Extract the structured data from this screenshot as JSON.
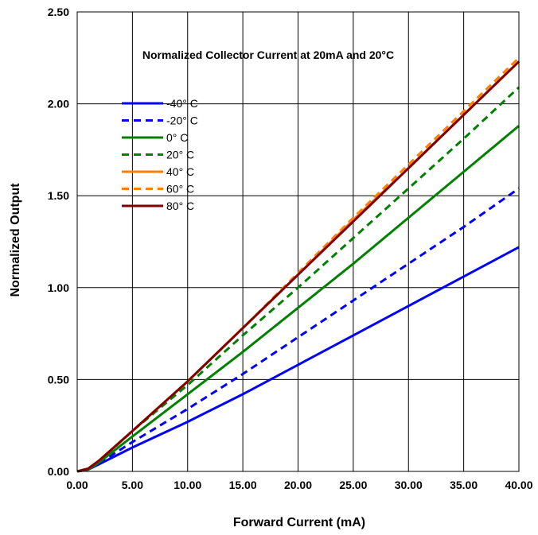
{
  "chart_data": {
    "type": "line",
    "title": "Normalized Collector Current at 20mA and 20°C",
    "xlabel": "Forward Current (mA)",
    "ylabel": "Normalized Output",
    "xlim": [
      0,
      40
    ],
    "ylim": [
      0,
      2.5
    ],
    "x_ticks": [
      "0.00",
      "5.00",
      "10.00",
      "15.00",
      "20.00",
      "25.00",
      "30.00",
      "35.00",
      "40.00"
    ],
    "y_ticks": [
      "0.00",
      "0.50",
      "1.00",
      "1.50",
      "2.00",
      "2.50"
    ],
    "grid": true,
    "legend_position": "upper-left",
    "x": [
      0,
      1,
      2,
      5,
      10,
      15,
      20,
      25,
      30,
      35,
      40
    ],
    "series": [
      {
        "name": "-40° C",
        "color": "#0000FF",
        "dash": "solid",
        "values": [
          0,
          0.01,
          0.04,
          0.13,
          0.27,
          0.42,
          0.58,
          0.74,
          0.9,
          1.06,
          1.22
        ]
      },
      {
        "name": "-20° C",
        "color": "#0000FF",
        "dash": "dashed",
        "values": [
          0,
          0.01,
          0.045,
          0.16,
          0.34,
          0.53,
          0.73,
          0.93,
          1.13,
          1.33,
          1.54
        ]
      },
      {
        "name": "0° C",
        "color": "#008000",
        "dash": "solid",
        "values": [
          0,
          0.01,
          0.05,
          0.19,
          0.42,
          0.65,
          0.89,
          1.13,
          1.38,
          1.63,
          1.88
        ]
      },
      {
        "name": "20° C",
        "color": "#008000",
        "dash": "dashed",
        "values": [
          0,
          0.01,
          0.055,
          0.22,
          0.47,
          0.74,
          1.0,
          1.27,
          1.54,
          1.81,
          2.09
        ]
      },
      {
        "name": "40° C",
        "color": "#FF7F00",
        "dash": "solid",
        "values": [
          0,
          0.015,
          0.06,
          0.22,
          0.49,
          0.78,
          1.07,
          1.37,
          1.65,
          1.94,
          2.23
        ]
      },
      {
        "name": "60° C",
        "color": "#FF7F00",
        "dash": "dashed",
        "values": [
          0,
          0.015,
          0.06,
          0.22,
          0.49,
          0.78,
          1.08,
          1.38,
          1.67,
          1.96,
          2.25
        ]
      },
      {
        "name": "80° C",
        "color": "#800000",
        "dash": "solid",
        "values": [
          0,
          0.015,
          0.06,
          0.22,
          0.49,
          0.78,
          1.07,
          1.36,
          1.65,
          1.94,
          2.23
        ]
      }
    ]
  }
}
